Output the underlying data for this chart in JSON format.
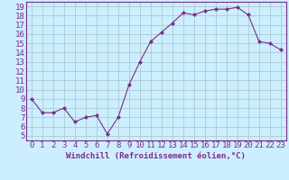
{
  "x": [
    0,
    1,
    2,
    3,
    4,
    5,
    6,
    7,
    8,
    9,
    10,
    11,
    12,
    13,
    14,
    15,
    16,
    17,
    18,
    19,
    20,
    21,
    22,
    23
  ],
  "y": [
    9.0,
    7.5,
    7.5,
    8.0,
    6.5,
    7.0,
    7.2,
    5.2,
    7.0,
    10.5,
    13.0,
    15.2,
    16.2,
    17.2,
    18.3,
    18.1,
    18.5,
    18.7,
    18.7,
    18.9,
    18.1,
    15.2,
    15.0,
    14.3
  ],
  "line_color": "#7b2d8b",
  "marker": "D",
  "marker_size": 2,
  "bg_color": "#cceeff",
  "grid_color": "#aacccc",
  "xlabel": "Windchill (Refroidissement éolien,°C)",
  "ylabel_ticks": [
    5,
    6,
    7,
    8,
    9,
    10,
    11,
    12,
    13,
    14,
    15,
    16,
    17,
    18,
    19
  ],
  "xlim": [
    -0.5,
    23.5
  ],
  "ylim": [
    4.5,
    19.5
  ],
  "tick_color": "#7b2d8b",
  "label_color": "#7b2d8b",
  "font_size": 6.5
}
